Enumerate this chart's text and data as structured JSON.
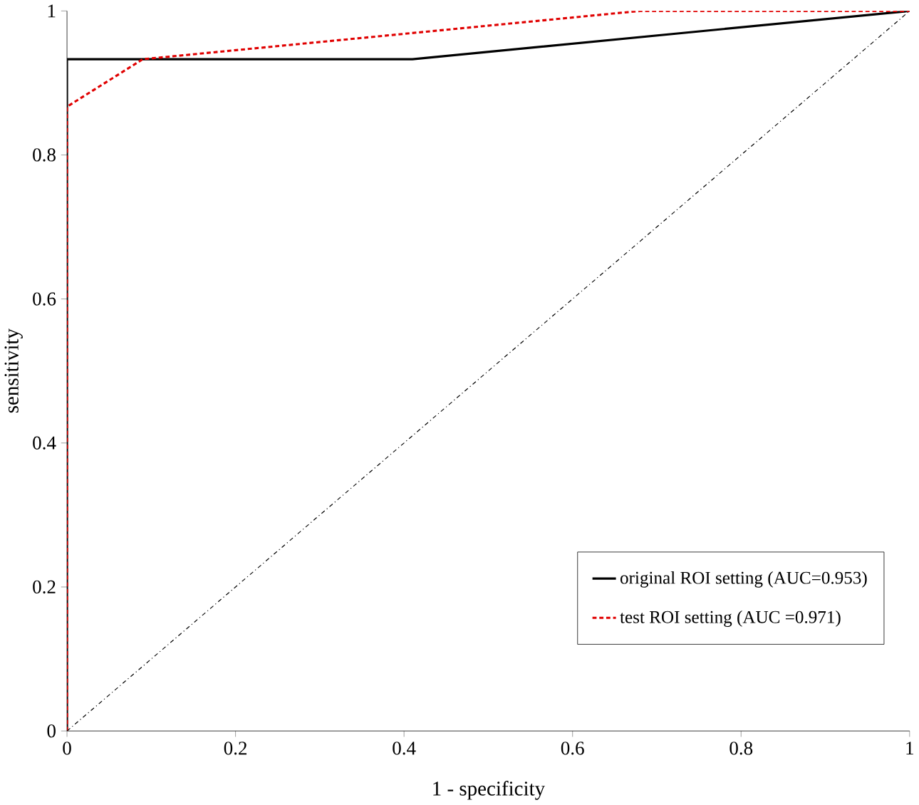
{
  "chart_data": {
    "type": "line",
    "xlabel": "1 - specificity",
    "ylabel": "sensitivity",
    "xlim": [
      0,
      1
    ],
    "ylim": [
      0,
      1
    ],
    "xticks": [
      0,
      0.2,
      0.4,
      0.6,
      0.8,
      1
    ],
    "yticks": [
      0,
      0.2,
      0.4,
      0.6,
      0.8,
      1
    ],
    "grid": false,
    "legend": "bottom right",
    "marker": "none",
    "series": [
      {
        "name": "original ROI setting (AUC=0.953)",
        "color": "#000000",
        "line_style": "solid",
        "x": [
          0,
          0,
          0.41,
          1
        ],
        "values": [
          0,
          0.933,
          0.933,
          1
        ]
      },
      {
        "name": "test ROI setting (AUC =0.971)",
        "color": "#e00000",
        "line_style": "dotted",
        "x": [
          0,
          0,
          0.09,
          0.68,
          1
        ],
        "values": [
          0,
          0.867,
          0.933,
          1,
          1
        ]
      },
      {
        "color": "#000000",
        "line_style": "dashdot",
        "x": [
          0,
          1
        ],
        "values": [
          0,
          1
        ]
      }
    ]
  }
}
